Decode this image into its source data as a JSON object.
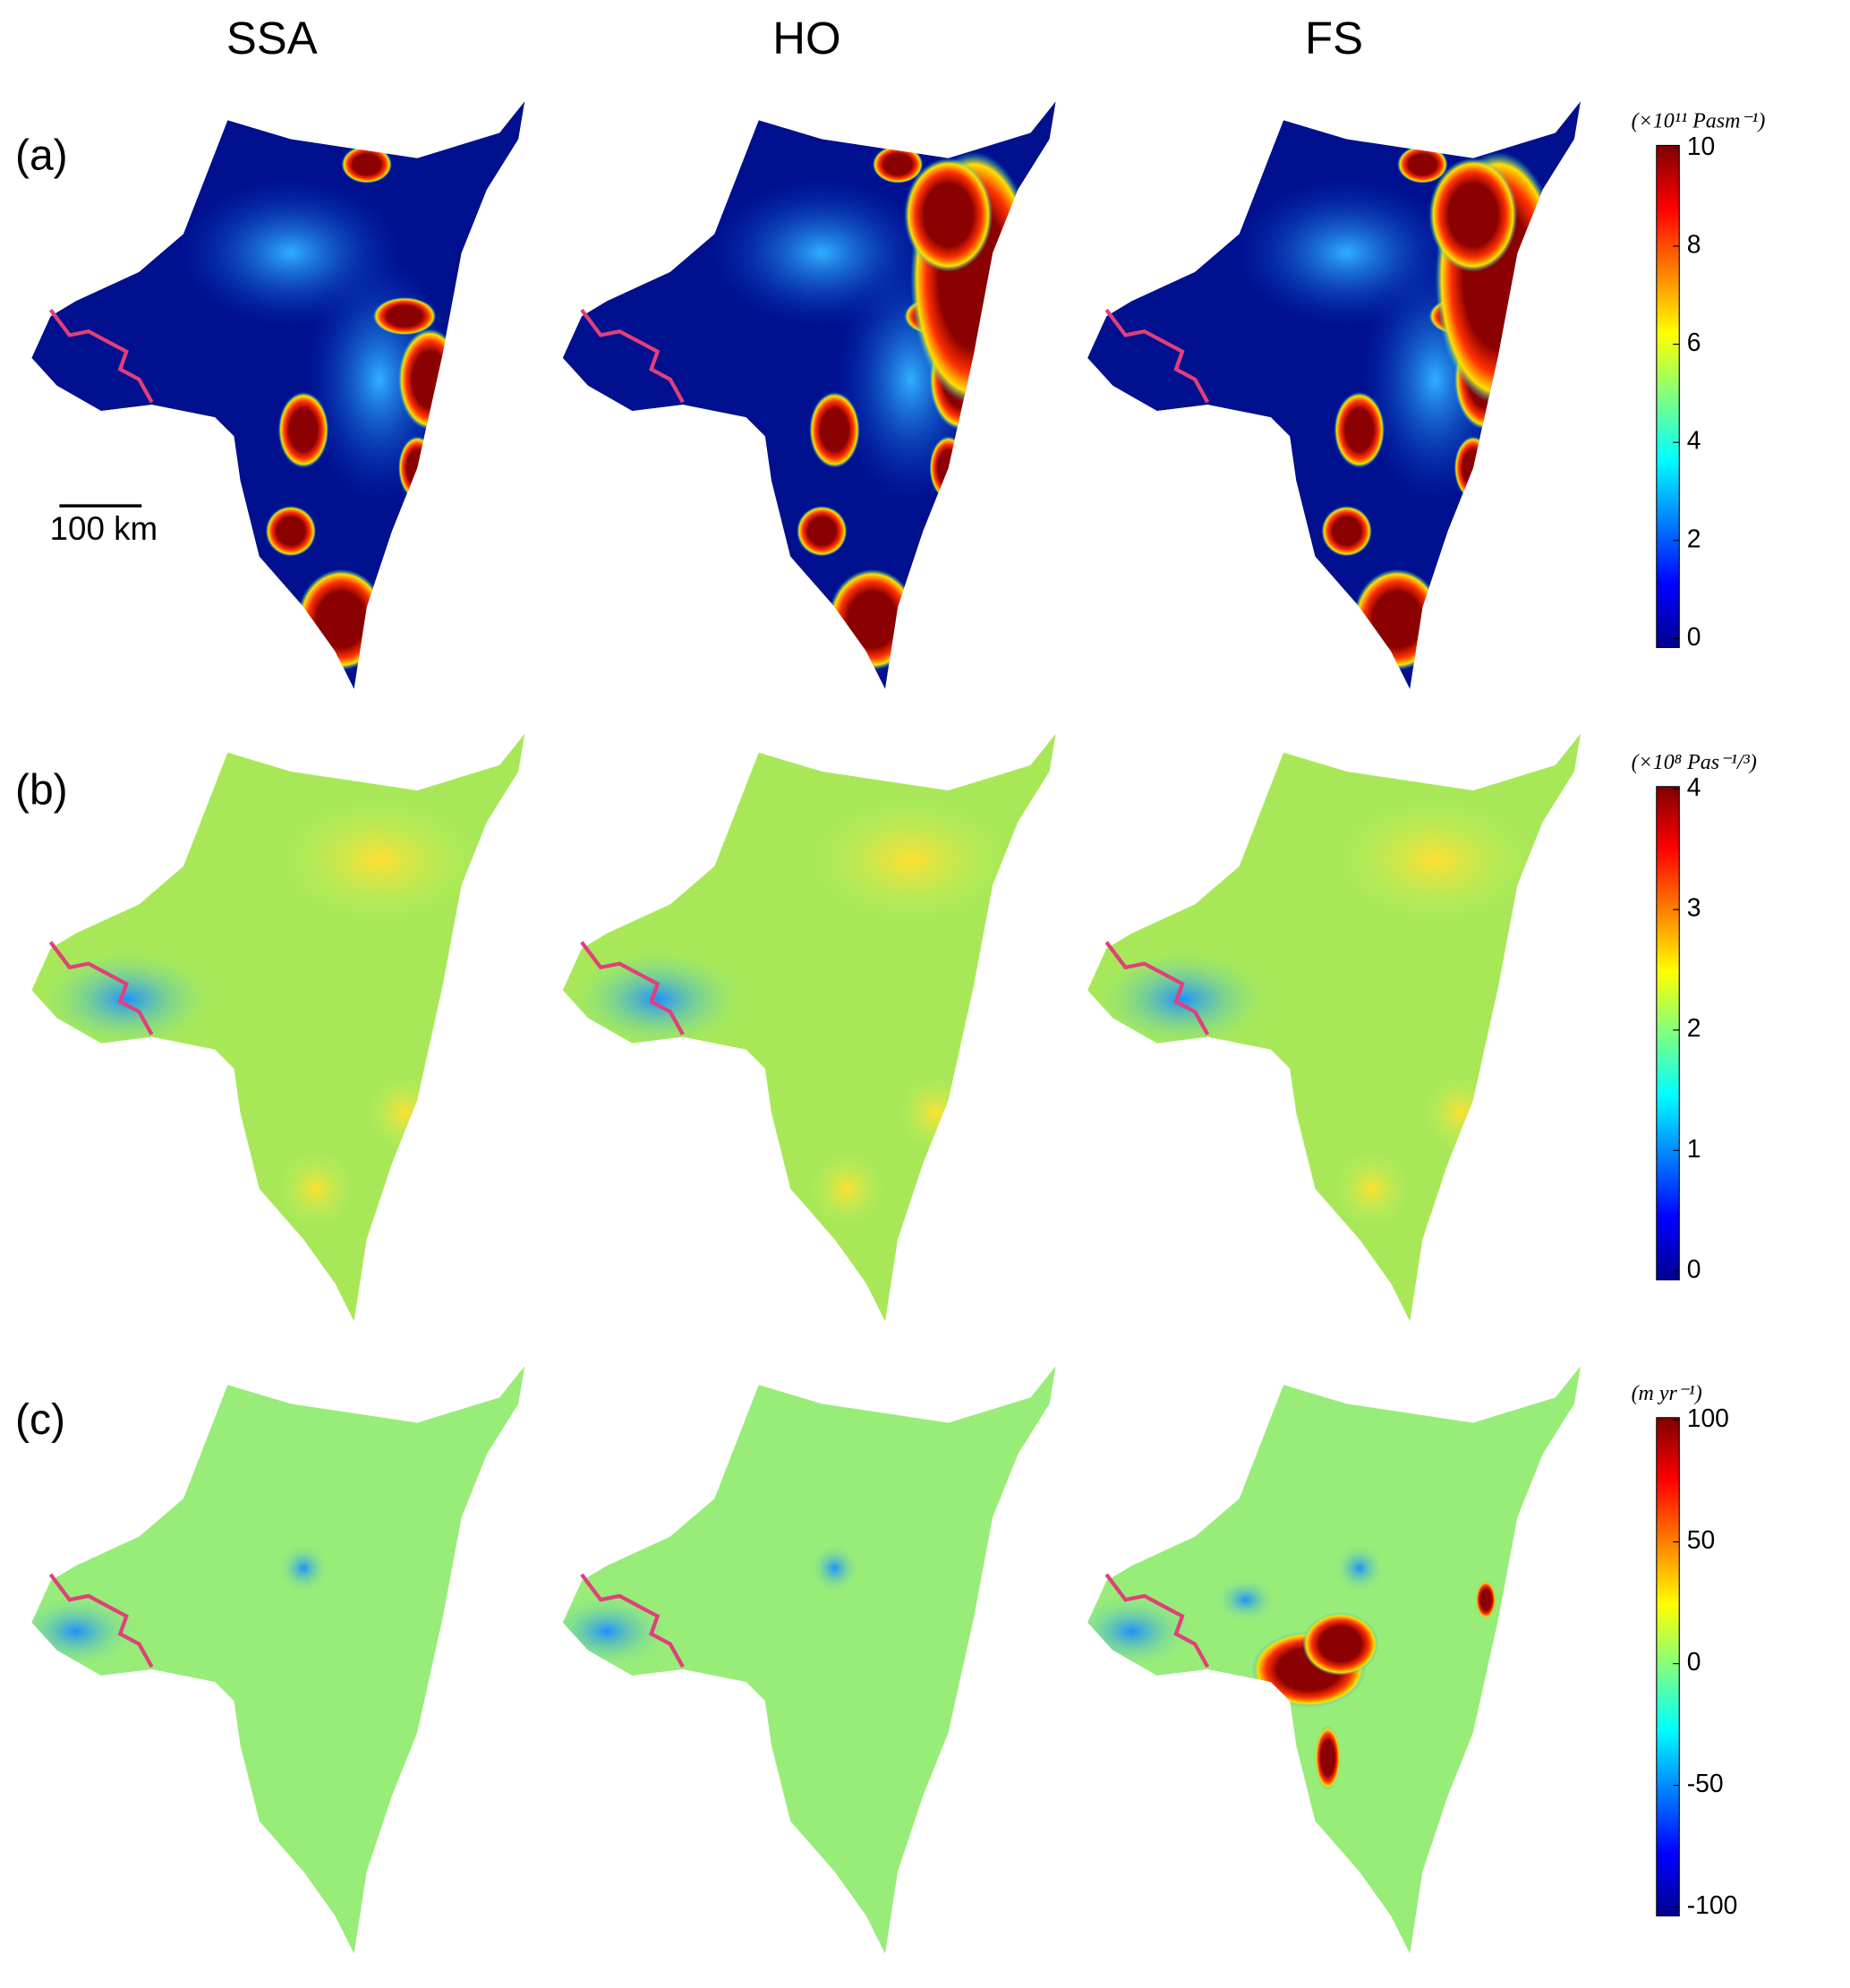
{
  "columns": [
    "SSA",
    "HO",
    "FS"
  ],
  "rows": [
    {
      "label": "(a)",
      "colorbar": {
        "unit": "(×10¹¹ Pasm⁻¹)",
        "ticks": [
          0,
          2,
          4,
          6,
          8,
          10
        ]
      }
    },
    {
      "label": "(b)",
      "colorbar": {
        "unit": "(×10⁸ Pas⁻¹/³)",
        "ticks": [
          0,
          1,
          2,
          3,
          4
        ]
      }
    },
    {
      "label": "(c)",
      "colorbar": {
        "unit": "(m yr⁻¹)",
        "ticks": [
          -100,
          -50,
          0,
          50,
          100
        ]
      }
    }
  ],
  "scale_bar": "100 km"
}
